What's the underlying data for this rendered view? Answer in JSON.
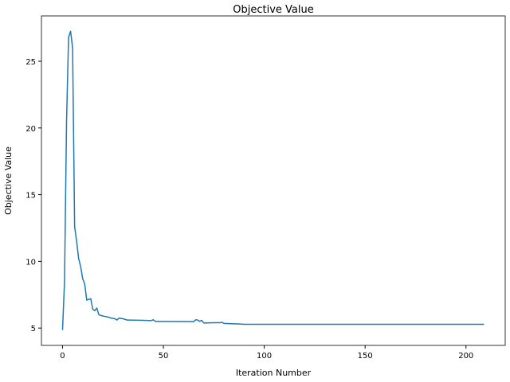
{
  "chart_data": {
    "type": "line",
    "title": "Objective Value",
    "x_label": "Iteration Number",
    "y_label": "Objective Value",
    "x": [
      0,
      1,
      2,
      3,
      4,
      5,
      6,
      7,
      8,
      9,
      10,
      11,
      12,
      13,
      14,
      15,
      16,
      17,
      18,
      19,
      20,
      22,
      24,
      26,
      27,
      28,
      30,
      32,
      40,
      44,
      45,
      46,
      50,
      60,
      65,
      66,
      67,
      68,
      69,
      70,
      75,
      78,
      79,
      80,
      85,
      88,
      90,
      209
    ],
    "series": [
      {
        "name": "Objective Value",
        "color": "#1f77b4",
        "values": [
          4.85,
          8.5,
          20.5,
          26.8,
          27.25,
          26.0,
          12.6,
          11.5,
          10.2,
          9.6,
          8.7,
          8.3,
          7.1,
          7.15,
          7.2,
          6.4,
          6.3,
          6.5,
          6.0,
          5.95,
          5.9,
          5.85,
          5.75,
          5.7,
          5.6,
          5.75,
          5.7,
          5.6,
          5.58,
          5.56,
          5.62,
          5.5,
          5.5,
          5.49,
          5.48,
          5.62,
          5.6,
          5.5,
          5.58,
          5.38,
          5.4,
          5.4,
          5.43,
          5.35,
          5.32,
          5.3,
          5.28,
          5.28
        ]
      }
    ],
    "xlim": [
      -10.45,
      219.45
    ],
    "ylim": [
      3.7,
      28.4
    ],
    "xticks": [
      0,
      50,
      100,
      150,
      200
    ],
    "yticks": [
      5,
      10,
      15,
      20,
      25
    ],
    "grid": false
  }
}
